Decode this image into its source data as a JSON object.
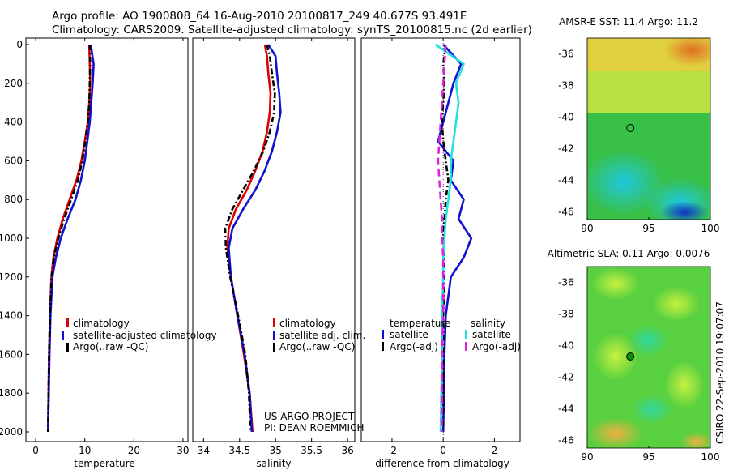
{
  "header": {
    "line1": "Argo profile: AO 1900808_64 16-Aug-2010 20100817_249 40.677S 93.491E",
    "line2": "Climatology: CARS2009. Satellite-adjusted climatology: synTS_20100815.nc (2d earlier)"
  },
  "project": {
    "line1": "US ARGO PROJECT",
    "line2": "PI: DEAN ROEMMICH"
  },
  "stamp": "CSIRO 22-Sep-2010 19:07:07",
  "colors": {
    "red": "#e00000",
    "blue": "#1010d0",
    "black": "#000000",
    "cyan": "#20e0e0",
    "magenta": "#e020e0"
  },
  "chart_data": [
    {
      "type": "line",
      "xlabel": "temperature",
      "ylabel": "",
      "xlim": [
        -2,
        31
      ],
      "ylim": [
        2050,
        0
      ],
      "xticks": [
        0,
        10,
        20,
        30
      ],
      "yticks": [
        0,
        200,
        400,
        600,
        800,
        1000,
        1200,
        1400,
        1600,
        1800,
        2000
      ],
      "legend": [
        "climatology",
        "satellite-adjusted climatology",
        "Argo(..raw -QC)"
      ],
      "series": [
        {
          "name": "climatology",
          "color": "#e00000",
          "dash": "",
          "x": [
            10.9,
            11.0,
            11.1,
            10.9,
            10.6,
            10.0,
            9.3,
            8.3,
            6.9,
            5.5,
            4.4,
            3.6,
            3.2,
            2.9,
            2.7,
            2.5
          ],
          "y": [
            0,
            100,
            200,
            300,
            400,
            500,
            600,
            700,
            800,
            900,
            1000,
            1100,
            1200,
            1400,
            1600,
            2000
          ]
        },
        {
          "name": "satellite-adjusted climatology",
          "color": "#1010d0",
          "dash": "",
          "x": [
            11.2,
            11.8,
            11.6,
            11.3,
            11.0,
            10.5,
            10.0,
            9.2,
            8.1,
            6.5,
            5.1,
            4.1,
            3.4,
            3.0,
            2.8,
            2.5
          ],
          "y": [
            0,
            100,
            200,
            300,
            400,
            500,
            600,
            700,
            800,
            900,
            1000,
            1100,
            1200,
            1400,
            1600,
            2000
          ]
        },
        {
          "name": "Argo(..raw -QC)",
          "color": "#000000",
          "dash": "7,3,2,3",
          "x": [
            11.0,
            11.1,
            11.0,
            10.9,
            10.6,
            10.1,
            9.5,
            8.6,
            7.2,
            5.8,
            4.6,
            3.7,
            3.2,
            2.9,
            2.7,
            2.5
          ],
          "y": [
            0,
            100,
            200,
            300,
            400,
            500,
            600,
            700,
            800,
            900,
            1000,
            1100,
            1200,
            1400,
            1600,
            2000
          ]
        }
      ]
    },
    {
      "type": "line",
      "xlabel": "salinity",
      "xlim": [
        33.85,
        36.1
      ],
      "ylim": [
        2050,
        0
      ],
      "xticks": [
        34,
        34.5,
        35,
        35.5,
        36
      ],
      "legend": [
        "climatology",
        "satellite adj. clim.",
        "Argo(..raw -QC)"
      ],
      "series": [
        {
          "name": "climatology",
          "color": "#e00000",
          "dash": "",
          "x": [
            34.85,
            34.88,
            34.9,
            34.93,
            34.92,
            34.88,
            34.82,
            34.72,
            34.6,
            34.45,
            34.35,
            34.33,
            34.38,
            34.47,
            34.56,
            34.64,
            34.68
          ],
          "y": [
            0,
            60,
            150,
            250,
            350,
            450,
            550,
            650,
            750,
            850,
            950,
            1050,
            1200,
            1400,
            1600,
            1800,
            2000
          ]
        },
        {
          "name": "satellite adj. clim.",
          "color": "#1010d0",
          "dash": "",
          "x": [
            34.9,
            35.0,
            35.02,
            35.05,
            35.07,
            35.02,
            34.95,
            34.85,
            34.72,
            34.55,
            34.4,
            34.35,
            34.38,
            34.47,
            34.57,
            34.64,
            34.67
          ],
          "y": [
            0,
            60,
            150,
            250,
            350,
            450,
            550,
            650,
            750,
            850,
            950,
            1050,
            1200,
            1400,
            1600,
            1800,
            2000
          ]
        },
        {
          "name": "Argo(..raw -QC)",
          "color": "#000000",
          "dash": "7,3,2,3",
          "x": [
            34.88,
            34.92,
            34.95,
            34.99,
            34.98,
            34.92,
            34.83,
            34.7,
            34.55,
            34.4,
            34.3,
            34.31,
            34.37,
            34.48,
            34.58,
            34.63,
            34.65
          ],
          "y": [
            0,
            60,
            150,
            250,
            350,
            450,
            550,
            650,
            750,
            850,
            950,
            1050,
            1200,
            1400,
            1600,
            1800,
            2000
          ]
        }
      ]
    },
    {
      "type": "line",
      "xlabel": "difference from climatology",
      "xlim": [
        -3.2,
        3.0
      ],
      "ylim": [
        2050,
        0
      ],
      "xticks": [
        -2,
        0,
        2
      ],
      "legend_groups": [
        {
          "title": "temperature",
          "items": [
            "satellite",
            "Argo(-adj)"
          ]
        },
        {
          "title": "salinity",
          "items": [
            "satellite",
            "Argo(-adj)"
          ]
        }
      ],
      "series": [
        {
          "name": "temperature satellite",
          "color": "#1010d0",
          "dash": "",
          "x": [
            0.0,
            0.7,
            0.4,
            0.2,
            0.0,
            -0.2,
            0.4,
            0.3,
            0.8,
            0.6,
            1.1,
            0.8,
            0.3,
            0.1,
            0.05,
            0.0
          ],
          "y": [
            0,
            100,
            200,
            300,
            400,
            500,
            600,
            700,
            800,
            900,
            1000,
            1100,
            1200,
            1400,
            1600,
            2000
          ]
        },
        {
          "name": "temperature Argo(-adj)",
          "color": "#000000",
          "dash": "7,3,2,3",
          "x": [
            0.1,
            0.0,
            0.05,
            0.0,
            -0.05,
            0.0,
            0.1,
            0.2,
            0.1,
            0.05,
            0.0,
            0.05,
            0.05,
            0.0,
            0.0,
            0.0
          ],
          "y": [
            0,
            100,
            200,
            300,
            400,
            500,
            600,
            700,
            800,
            900,
            1000,
            1100,
            1200,
            1400,
            1600,
            2000
          ]
        },
        {
          "name": "salinity satellite",
          "color": "#20e0e0",
          "dash": "",
          "x": [
            -0.3,
            0.8,
            0.5,
            0.6,
            0.5,
            0.4,
            0.3,
            0.3,
            0.2,
            0.1,
            0.05,
            0.0,
            0.0,
            -0.05,
            -0.05,
            -0.1
          ],
          "y": [
            0,
            100,
            200,
            300,
            400,
            500,
            600,
            700,
            800,
            900,
            1000,
            1100,
            1200,
            1400,
            1600,
            2000
          ]
        },
        {
          "name": "salinity Argo(-adj)",
          "color": "#e020e0",
          "dash": "9,5",
          "x": [
            0.1,
            0.05,
            0.0,
            -0.05,
            -0.1,
            -0.15,
            -0.2,
            -0.15,
            -0.1,
            -0.05,
            -0.05,
            0.0,
            0.0,
            0.0,
            -0.05,
            -0.05
          ],
          "y": [
            0,
            100,
            200,
            300,
            400,
            500,
            600,
            700,
            800,
            900,
            1000,
            1100,
            1200,
            1400,
            1600,
            2000
          ]
        }
      ]
    },
    {
      "type": "heatmap",
      "title": "AMSR-E SST: 11.4 Argo: 11.2",
      "xlim": [
        88,
        100
      ],
      "ylim": [
        -46.5,
        -35
      ],
      "xticks": [
        90,
        95,
        100
      ],
      "yticks": [
        -36,
        -38,
        -40,
        -42,
        -44,
        -46
      ],
      "marker": {
        "x": 93.5,
        "y": -40.7
      }
    },
    {
      "type": "heatmap",
      "title": "Altimetric SLA: 0.11 Argo: 0.0076",
      "xlim": [
        88,
        100
      ],
      "ylim": [
        -46.5,
        -35
      ],
      "xticks": [
        90,
        95,
        100
      ],
      "yticks": [
        -36,
        -38,
        -40,
        -42,
        -44,
        -46
      ],
      "marker": {
        "x": 93.5,
        "y": -40.7
      }
    }
  ]
}
